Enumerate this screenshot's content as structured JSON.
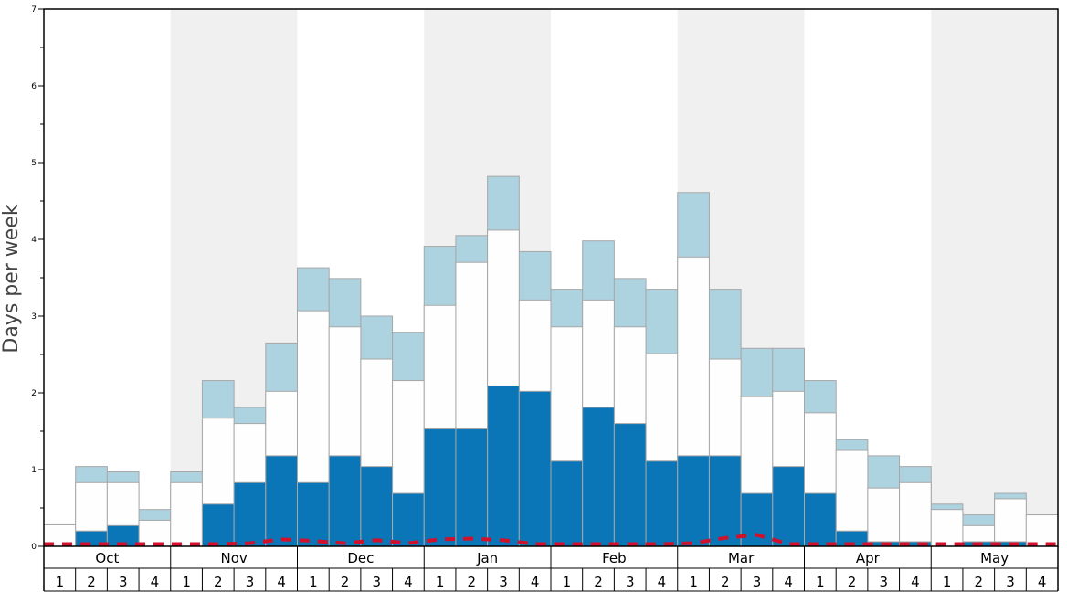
{
  "chart_data": {
    "type": "bar",
    "ylabel": "Days per week",
    "ylim": [
      0,
      7
    ],
    "yticks": [
      "0",
      "1",
      "2",
      "3",
      "4",
      "5",
      "6",
      "7"
    ],
    "months": [
      "Oct",
      "Nov",
      "Dec",
      "Jan",
      "Feb",
      "Mar",
      "Apr",
      "May"
    ],
    "week_labels": [
      "1",
      "2",
      "3",
      "4"
    ],
    "alternate_month_shading": true,
    "stacked_cumulative": true,
    "series": [
      {
        "color": "#0a75b7",
        "values": [
          0,
          0.2,
          0.27,
          0,
          0,
          0.55,
          0.83,
          1.18,
          0.83,
          1.18,
          1.04,
          0.69,
          1.53,
          1.53,
          2.09,
          2.02,
          1.11,
          1.81,
          1.6,
          1.11,
          1.18,
          1.18,
          0.69,
          1.04,
          0.69,
          0.2,
          0.06,
          0.06,
          0,
          0.06,
          0.06,
          0
        ]
      },
      {
        "color": "#fefefe",
        "values": [
          0.28,
          0.83,
          0.83,
          0.34,
          0.83,
          1.67,
          1.6,
          2.02,
          3.07,
          2.86,
          2.44,
          2.16,
          3.14,
          3.7,
          4.12,
          3.21,
          2.86,
          3.21,
          2.86,
          2.51,
          3.77,
          2.44,
          1.95,
          2.02,
          1.74,
          1.25,
          0.76,
          0.83,
          0.48,
          0.27,
          0.62,
          0.41
        ]
      },
      {
        "color": "#aed3e0",
        "values": [
          0.28,
          1.04,
          0.97,
          0.48,
          0.97,
          2.16,
          1.81,
          2.65,
          3.63,
          3.49,
          3.0,
          2.79,
          3.91,
          4.05,
          4.82,
          3.84,
          3.35,
          3.98,
          3.49,
          3.35,
          4.61,
          3.35,
          2.58,
          2.58,
          2.16,
          1.39,
          1.18,
          1.04,
          0.55,
          0.41,
          0.69,
          0.41
        ]
      },
      {
        "color": "#d0112b",
        "line_style": "dashed",
        "values": [
          0.03,
          0.03,
          0.03,
          0.03,
          0.03,
          0.03,
          0.04,
          0.09,
          0.07,
          0.04,
          0.08,
          0.04,
          0.09,
          0.1,
          0.08,
          0.03,
          0.03,
          0.03,
          0.03,
          0.03,
          0.04,
          0.11,
          0.15,
          0.03,
          0.03,
          0.03,
          0.03,
          0.03,
          0.03,
          0.03,
          0.03,
          0.03
        ]
      }
    ]
  }
}
